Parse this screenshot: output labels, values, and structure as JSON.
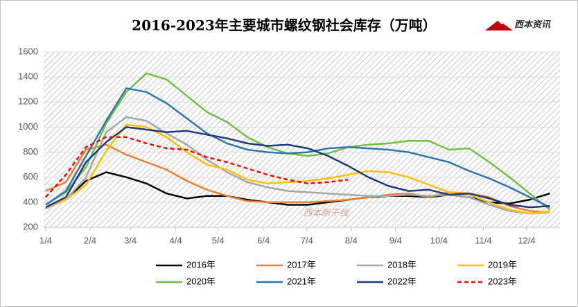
{
  "chart_data": {
    "type": "line",
    "title": "2016-2023年主要城市螺纹钢社会库存（万吨）",
    "logo": "西本资讯",
    "watermark": "西本新干线",
    "x": [
      0,
      2,
      4,
      6,
      8,
      10,
      12,
      14,
      16,
      18,
      20,
      22,
      24,
      26,
      28,
      30,
      32,
      34,
      36,
      38,
      40,
      42,
      44,
      46,
      48,
      50
    ],
    "xlim": [
      -0.2,
      51
    ],
    "xticks": [
      {
        "value": 0,
        "label": "1/4"
      },
      {
        "value": 4.4,
        "label": "2/4"
      },
      {
        "value": 8.4,
        "label": "3/4"
      },
      {
        "value": 12.9,
        "label": "4/4"
      },
      {
        "value": 17.1,
        "label": "5/4"
      },
      {
        "value": 21.6,
        "label": "6/4"
      },
      {
        "value": 25.9,
        "label": "7/4"
      },
      {
        "value": 30.3,
        "label": "8/4"
      },
      {
        "value": 34.7,
        "label": "9/4"
      },
      {
        "value": 39,
        "label": "10/4"
      },
      {
        "value": 43.4,
        "label": "11/4"
      },
      {
        "value": 47.7,
        "label": "12/4"
      }
    ],
    "ylim": [
      200,
      1600
    ],
    "yticks": [
      200,
      400,
      600,
      800,
      1000,
      1200,
      1400,
      1600
    ],
    "series": [
      {
        "name": "2016年",
        "color": "#000000",
        "values": [
          360,
          420,
          570,
          640,
          600,
          550,
          470,
          430,
          450,
          450,
          420,
          400,
          380,
          380,
          400,
          420,
          440,
          450,
          450,
          440,
          460,
          440,
          400,
          390,
          420,
          470
        ]
      },
      {
        "name": "2017年",
        "color": "#ed7d31",
        "values": [
          490,
          560,
          820,
          860,
          780,
          720,
          660,
          570,
          500,
          450,
          410,
          400,
          400,
          400,
          410,
          420,
          440,
          460,
          470,
          440,
          480,
          470,
          440,
          370,
          330,
          320
        ]
      },
      {
        "name": "2018年",
        "color": "#a5a5a5",
        "values": [
          350,
          420,
          600,
          960,
          1080,
          1050,
          950,
          860,
          740,
          640,
          560,
          520,
          490,
          480,
          470,
          460,
          450,
          450,
          460,
          450,
          460,
          440,
          380,
          330,
          310,
          320
        ]
      },
      {
        "name": "2019年",
        "color": "#ffc000",
        "values": [
          360,
          420,
          540,
          810,
          1020,
          1000,
          920,
          800,
          700,
          660,
          580,
          550,
          560,
          570,
          590,
          620,
          650,
          640,
          600,
          540,
          480,
          460,
          400,
          340,
          310,
          330
        ]
      },
      {
        "name": "2020年",
        "color": "#70c040",
        "values": [
          380,
          480,
          680,
          1030,
          1280,
          1430,
          1380,
          1250,
          1120,
          1040,
          920,
          840,
          790,
          770,
          790,
          840,
          860,
          870,
          890,
          890,
          820,
          830,
          720,
          600,
          470,
          340
        ]
      },
      {
        "name": "2021年",
        "color": "#2e75b6",
        "values": [
          380,
          490,
          770,
          1050,
          1310,
          1280,
          1190,
          1070,
          950,
          870,
          820,
          800,
          790,
          800,
          830,
          840,
          830,
          820,
          800,
          760,
          720,
          650,
          590,
          520,
          440,
          360
        ]
      },
      {
        "name": "2022年",
        "color": "#1f3a7a",
        "values": [
          360,
          440,
          720,
          880,
          1000,
          980,
          960,
          970,
          940,
          910,
          870,
          850,
          860,
          830,
          770,
          690,
          600,
          530,
          490,
          500,
          460,
          470,
          430,
          380,
          360,
          370
        ]
      },
      {
        "name": "2023年",
        "color": "#ff0000",
        "dashed": true,
        "values": [
          440,
          620,
          840,
          920,
          920,
          870,
          830,
          820,
          760,
          720,
          670,
          620,
          580,
          550,
          560,
          580,
          null,
          null,
          null,
          null,
          null,
          null,
          null,
          null,
          null,
          null
        ]
      }
    ],
    "grid": true
  }
}
